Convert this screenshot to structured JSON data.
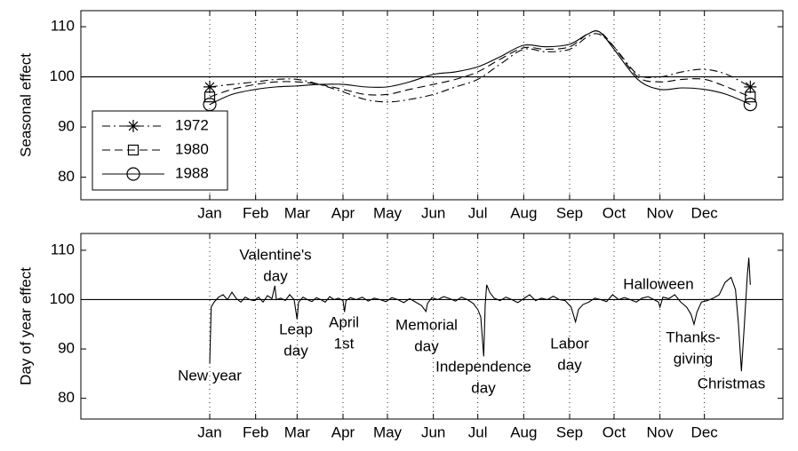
{
  "chart_data": [
    {
      "type": "line",
      "smooth": true,
      "ylabel": "Seasonal effect",
      "xlim": [
        -86,
        388
      ],
      "ylim": [
        75.5,
        113.2
      ],
      "xticks": [
        {
          "value": 1,
          "label": "Jan"
        },
        {
          "value": 32,
          "label": "Feb"
        },
        {
          "value": 60,
          "label": "Mar"
        },
        {
          "value": 91,
          "label": "Apr"
        },
        {
          "value": 121,
          "label": "May"
        },
        {
          "value": 152,
          "label": "Jun"
        },
        {
          "value": 182,
          "label": "Jul"
        },
        {
          "value": 213,
          "label": "Aug"
        },
        {
          "value": 244,
          "label": "Sep"
        },
        {
          "value": 274,
          "label": "Oct"
        },
        {
          "value": 305,
          "label": "Nov"
        },
        {
          "value": 335,
          "label": "Dec"
        }
      ],
      "yticks": [
        80,
        90,
        100,
        110
      ],
      "xgrid": true,
      "hline": 100,
      "legend": "upper left",
      "x": [
        1,
        16,
        32,
        46,
        60,
        75,
        91,
        106,
        121,
        136,
        152,
        167,
        182,
        197,
        213,
        228,
        244,
        256,
        264,
        274,
        290,
        305,
        320,
        335,
        350,
        366
      ],
      "series": [
        {
          "name": "1972",
          "color": "#000000",
          "linestyle": "dashdot",
          "marker": "star",
          "values": [
            98,
            98.5,
            99,
            99.5,
            99.5,
            98.5,
            97,
            95.5,
            95,
            95.5,
            96.5,
            98,
            99.5,
            102.5,
            105.5,
            105,
            105.5,
            108,
            108.5,
            106,
            100.5,
            100,
            101,
            101.5,
            100.5,
            98
          ]
        },
        {
          "name": "1980",
          "color": "#000000",
          "linestyle": "dashed",
          "marker": "square",
          "values": [
            96,
            97.5,
            98.5,
            99,
            99,
            98.5,
            97.5,
            96.5,
            96.5,
            97.5,
            98.5,
            99.5,
            101,
            103.5,
            105.8,
            105.5,
            106,
            108.5,
            109,
            106,
            100,
            99,
            99.5,
            99.5,
            98,
            96
          ]
        },
        {
          "name": "1988",
          "color": "#000000",
          "linestyle": "solid",
          "marker": "circle",
          "values": [
            94.5,
            96.5,
            97.5,
            98,
            98.2,
            98.5,
            98.5,
            98,
            98,
            99,
            100.5,
            101,
            102,
            104,
            106.3,
            106,
            106.5,
            108.5,
            109,
            105.5,
            99.5,
            97.5,
            97.8,
            97.5,
            96.5,
            94.5
          ]
        }
      ]
    },
    {
      "type": "line",
      "smooth": false,
      "ylabel": "Day of year effect",
      "xlim": [
        -86,
        388
      ],
      "ylim": [
        75.8,
        113.4
      ],
      "xticks": [
        {
          "value": 1,
          "label": "Jan"
        },
        {
          "value": 32,
          "label": "Feb"
        },
        {
          "value": 60,
          "label": "Mar"
        },
        {
          "value": 91,
          "label": "Apr"
        },
        {
          "value": 121,
          "label": "May"
        },
        {
          "value": 152,
          "label": "Jun"
        },
        {
          "value": 182,
          "label": "Jul"
        },
        {
          "value": 213,
          "label": "Aug"
        },
        {
          "value": 244,
          "label": "Sep"
        },
        {
          "value": 274,
          "label": "Oct"
        },
        {
          "value": 305,
          "label": "Nov"
        },
        {
          "value": 335,
          "label": "Dec"
        }
      ],
      "yticks": [
        80,
        90,
        100,
        110
      ],
      "xgrid": true,
      "hline": 100,
      "x": [
        1,
        2,
        4,
        7,
        10,
        13,
        16,
        19,
        22,
        25,
        28,
        31,
        34,
        37,
        40,
        43,
        45,
        46,
        49,
        52,
        55,
        58,
        60,
        61,
        64,
        67,
        70,
        73,
        76,
        79,
        82,
        85,
        88,
        91,
        92,
        93,
        96,
        100,
        104,
        108,
        112,
        116,
        120,
        124,
        128,
        132,
        136,
        140,
        144,
        147,
        148,
        151,
        155,
        159,
        163,
        167,
        171,
        175,
        179,
        182,
        184,
        186,
        187,
        188,
        190,
        193,
        197,
        201,
        205,
        209,
        213,
        217,
        221,
        225,
        229,
        233,
        237,
        241,
        245,
        248,
        250,
        253,
        257,
        261,
        265,
        269,
        273,
        277,
        281,
        285,
        289,
        293,
        297,
        301,
        304,
        305,
        307,
        311,
        315,
        319,
        323,
        326,
        328,
        330,
        333,
        337,
        341,
        345,
        349,
        353,
        356,
        358,
        360,
        362,
        364,
        365,
        366
      ],
      "series": [
        {
          "name": "Day of year effect",
          "color": "#000000",
          "linestyle": "solid",
          "values": [
            87,
            98.5,
            99.5,
            100.5,
            101,
            100,
            101.5,
            100.2,
            99.5,
            100.5,
            100,
            99.8,
            100.5,
            99.5,
            100.8,
            100.2,
            102.8,
            100,
            100.3,
            99.8,
            101,
            100,
            96,
            99.5,
            100.5,
            100,
            99.6,
            100.4,
            100,
            99.5,
            100.6,
            100,
            100.3,
            99.8,
            97.5,
            99.8,
            100.4,
            100,
            100.5,
            99.7,
            100.3,
            100,
            99.6,
            100.4,
            100,
            99.4,
            100.2,
            99.5,
            98.8,
            97.6,
            99.2,
            100.4,
            100,
            100.6,
            100.2,
            99.7,
            100.5,
            100,
            99.2,
            98,
            96.5,
            88.5,
            99,
            103,
            101.5,
            100.3,
            99.8,
            100.5,
            100,
            99.4,
            100.2,
            101,
            99.8,
            100.3,
            100,
            100.7,
            100,
            99.8,
            98.5,
            95.5,
            98,
            99,
            99.5,
            100.3,
            100,
            99.6,
            101,
            100,
            100.4,
            100,
            99.5,
            100.3,
            100.6,
            100,
            99.5,
            98.5,
            100.5,
            100.2,
            101,
            99.5,
            98.5,
            97,
            95,
            97.5,
            99.5,
            99.8,
            100.3,
            101,
            103.5,
            104.5,
            102,
            95,
            85.5,
            95,
            105,
            108.5,
            103
          ]
        }
      ],
      "annotations": [
        {
          "lines": [
            "New year"
          ]
        },
        {
          "lines": [
            "Valentine's",
            "day"
          ]
        },
        {
          "lines": [
            "Leap",
            "day"
          ]
        },
        {
          "lines": [
            "April",
            "1st"
          ]
        },
        {
          "lines": [
            "Memorial",
            "day"
          ]
        },
        {
          "lines": [
            "Independence",
            "day"
          ]
        },
        {
          "lines": [
            "Labor",
            "day"
          ]
        },
        {
          "lines": [
            "Halloween"
          ]
        },
        {
          "lines": [
            "Thanks-",
            "giving"
          ]
        },
        {
          "lines": [
            "Christmas"
          ]
        }
      ]
    }
  ]
}
